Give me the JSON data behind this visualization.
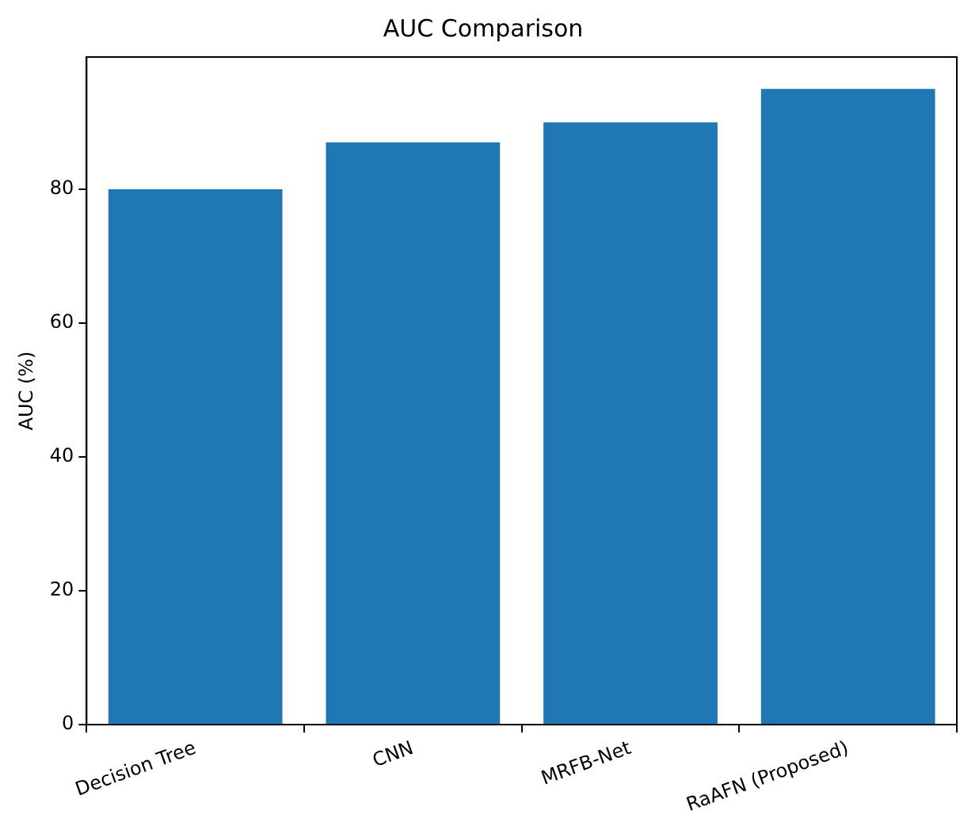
{
  "chart_data": {
    "type": "bar",
    "title": "AUC Comparison",
    "ylabel": "AUC (%)",
    "categories": [
      "Decision Tree",
      "CNN",
      "MRFB-Net",
      "RaAFN (Proposed)"
    ],
    "values": [
      80,
      87,
      90,
      95
    ],
    "color": "#1f77b4",
    "ylim": [
      0,
      99.75
    ],
    "yticks": [
      0,
      20,
      40,
      60,
      80
    ],
    "grid": false
  }
}
